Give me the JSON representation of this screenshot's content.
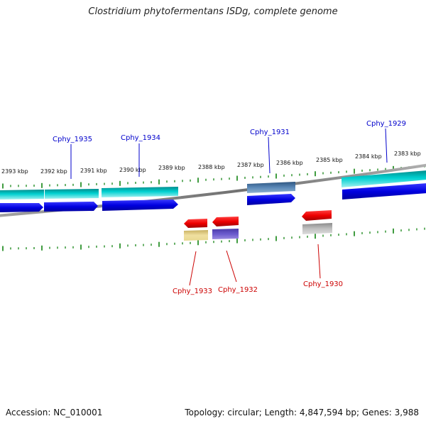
{
  "title": "Clostridium phytofermentans ISDg, complete genome",
  "footer": {
    "accession": "Accession: NC_010001",
    "topology": "Topology: circular; Length: 4,847,594 bp; Genes: 3,988"
  },
  "ticks": {
    "labels": [
      "2393 kbp",
      "2392 kbp",
      "2391 kbp",
      "2390 kbp",
      "2389 kbp",
      "2388 kbp",
      "2387 kbp",
      "2386 kbp",
      "2385 kbp",
      "2384 kbp",
      "2383 kbp"
    ]
  },
  "genes_forward": [
    {
      "label": "Cphy_1935",
      "color": "#0000dd"
    },
    {
      "label": "Cphy_1934",
      "color": "#0000dd"
    },
    {
      "label": "Cphy_1931",
      "color": "#0000dd"
    },
    {
      "label": "Cphy_1929",
      "color": "#0000dd"
    }
  ],
  "genes_reverse": [
    {
      "label": "Cphy_1933",
      "color": "#dd0000"
    },
    {
      "label": "Cphy_1932",
      "color": "#dd0000"
    },
    {
      "label": "Cphy_1930",
      "color": "#dd0000"
    }
  ],
  "colors": {
    "forward_cds": "#0000e6",
    "reverse_cds": "#ee0000",
    "feature_cyan": "#00c8c8",
    "feature_steelblue": "#4a7aa8",
    "feature_khaki": "#e8d890",
    "feature_slateblue": "#6a5acd",
    "feature_gray": "#b8b8b8",
    "tick_green": "#007a00",
    "backbone": "#808080",
    "label_forward": "#0000cc",
    "label_reverse": "#cc0000"
  }
}
